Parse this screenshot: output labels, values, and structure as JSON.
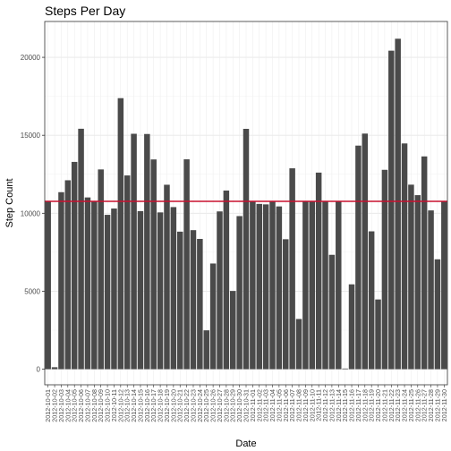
{
  "chart_data": {
    "type": "bar",
    "title": "Steps Per Day",
    "xlabel": "Date",
    "ylabel": "Step Count",
    "ylim": [
      -1000,
      22300
    ],
    "yticks": [
      0,
      5000,
      10000,
      15000,
      20000
    ],
    "ytick_labels": [
      "0",
      "5000",
      "10000",
      "15000",
      "20000"
    ],
    "grid": true,
    "bar_color": "#4a4a4a",
    "reference_line": {
      "value": 10766,
      "color": "#c8102e"
    },
    "categories": [
      "2012-10-01",
      "2012-10-02",
      "2012-10-03",
      "2012-10-04",
      "2012-10-05",
      "2012-10-06",
      "2012-10-07",
      "2012-10-08",
      "2012-10-09",
      "2012-10-10",
      "2012-10-11",
      "2012-10-12",
      "2012-10-13",
      "2012-10-14",
      "2012-10-15",
      "2012-10-16",
      "2012-10-17",
      "2012-10-18",
      "2012-10-19",
      "2012-10-20",
      "2012-10-21",
      "2012-10-22",
      "2012-10-23",
      "2012-10-24",
      "2012-10-25",
      "2012-10-26",
      "2012-10-27",
      "2012-10-28",
      "2012-10-29",
      "2012-10-30",
      "2012-10-31",
      "2012-11-01",
      "2012-11-02",
      "2012-11-03",
      "2012-11-04",
      "2012-11-05",
      "2012-11-06",
      "2012-11-07",
      "2012-11-08",
      "2012-11-09",
      "2012-11-10",
      "2012-11-11",
      "2012-11-12",
      "2012-11-13",
      "2012-11-14",
      "2012-11-15",
      "2012-11-16",
      "2012-11-17",
      "2012-11-18",
      "2012-11-19",
      "2012-11-20",
      "2012-11-21",
      "2012-11-22",
      "2012-11-23",
      "2012-11-24",
      "2012-11-25",
      "2012-11-26",
      "2012-11-27",
      "2012-11-28",
      "2012-11-29",
      "2012-11-30"
    ],
    "xtick_labels": [
      "2012-10-01",
      "2012-10-02",
      "2012-10-03",
      "2012-10-04",
      "2012-10-05",
      "2012-10-06",
      "2012-10-07",
      "2012-10-08",
      "2012-10-09",
      "2012-10-10",
      "2012-10-11",
      "2012-10-12",
      "2012-10-13",
      "2012-10-14",
      "2012-10-15",
      "2012-10-16",
      "2012-10-17",
      "2012-10-18",
      "2012-10-19",
      "2012-10-20",
      "2012-10-21",
      "2012-10-22",
      "2012-10-23",
      "2012-10-24",
      "2012-10-25",
      "2012-10-26",
      "2012-10-27",
      "2012-10-28",
      "2012-10-29",
      "2012-10-30",
      "2012-10-31",
      "2012-11-01",
      "2012-11-02",
      "2012-11-03",
      "2012-11-04",
      "2012-11-05",
      "2012-11-06",
      "2012-11-07",
      "2012-11-08",
      "2012-11-09",
      "2012-11-10",
      "2012-11-11",
      "2012-11-12",
      "2012-11-13",
      "2012-11-14",
      "2012-11-15",
      "2012-11-16",
      "2012-11-17",
      "2012-11-18",
      "2012-11-19",
      "2012-11-20",
      "2012-11-21",
      "2012-11-22",
      "2012-11-23",
      "2012-11-24",
      "2012-11-25",
      "2012-11-26",
      "2012-11-27",
      "2012-11-28",
      "2012-11-29",
      "2012-11-30"
    ],
    "values": [
      10766,
      126,
      11352,
      12116,
      13294,
      15420,
      11015,
      10766,
      12811,
      9900,
      10304,
      17382,
      12426,
      15098,
      10139,
      15084,
      13452,
      10056,
      11829,
      10395,
      8821,
      13460,
      8918,
      8355,
      2492,
      6778,
      10119,
      11458,
      5018,
      9819,
      15414,
      10766,
      10600,
      10571,
      10766,
      10439,
      8334,
      12883,
      3219,
      10766,
      10766,
      12608,
      10765,
      7336,
      10766,
      41,
      5441,
      14339,
      15110,
      8841,
      4472,
      12787,
      20427,
      21194,
      14478,
      11834,
      11162,
      13646,
      10183,
      7047,
      10766
    ]
  }
}
